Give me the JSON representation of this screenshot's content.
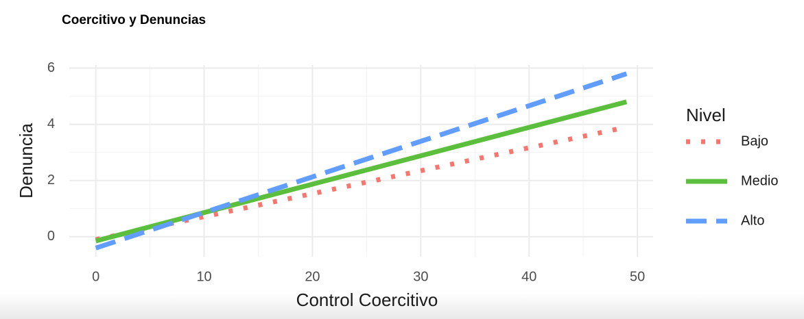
{
  "chart_data": {
    "type": "line",
    "title": "Coercitivo y Denuncias",
    "x_label": "Control Coercitivo",
    "y_label": "Denuncia",
    "legend_title": "Nivel",
    "legend": "right",
    "grid": true,
    "x": [
      0,
      49
    ],
    "series": [
      {
        "name": "Bajo",
        "color": "#f8766d",
        "dash": "dotted",
        "values": [
          -0.1,
          3.9
        ]
      },
      {
        "name": "Medio",
        "color": "#5bbf3d",
        "dash": "solid",
        "values": [
          -0.15,
          4.8
        ]
      },
      {
        "name": "Alto",
        "color": "#619cff",
        "dash": "dashed",
        "values": [
          -0.4,
          5.8
        ]
      }
    ],
    "xlim": [
      -2.45,
      51.45
    ],
    "xticks": [
      0,
      10,
      20,
      30,
      40,
      50
    ],
    "x_minor_grid": [
      5,
      15,
      25,
      35,
      45
    ],
    "ylim": [
      -0.71,
      6.11
    ],
    "yticks": [
      0,
      2,
      4,
      6
    ],
    "y_minor_grid": [
      1,
      3,
      5
    ]
  }
}
